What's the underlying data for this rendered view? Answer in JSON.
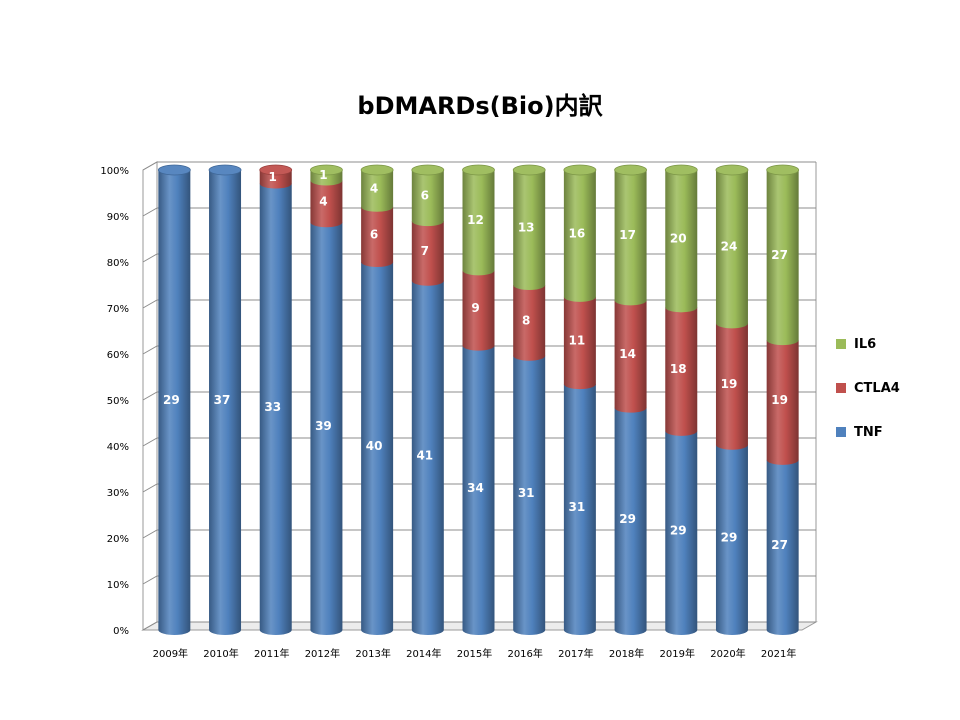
{
  "chart_data": {
    "type": "bar",
    "stacked": true,
    "percent_stacked": true,
    "title": "bDMARDs(Bio)内訳",
    "xlabel": "",
    "ylabel": "",
    "ylim": [
      0,
      100
    ],
    "y_ticks": [
      "0%",
      "10%",
      "20%",
      "30%",
      "40%",
      "50%",
      "60%",
      "70%",
      "80%",
      "90%",
      "100%"
    ],
    "grid": true,
    "legend_position": "right",
    "categories": [
      "2009年",
      "2010年",
      "2011年",
      "2012年",
      "2013年",
      "2014年",
      "2015年",
      "2016年",
      "2017年",
      "2018年",
      "2019年",
      "2020年",
      "2021年"
    ],
    "series": [
      {
        "name": "TNF",
        "color": "#4F81BD",
        "values": [
          29,
          37,
          33,
          39,
          40,
          41,
          34,
          31,
          31,
          29,
          29,
          29,
          27
        ]
      },
      {
        "name": "CTLA4",
        "color": "#C0504D",
        "values": [
          null,
          null,
          1,
          4,
          6,
          7,
          9,
          8,
          11,
          14,
          18,
          19,
          19
        ]
      },
      {
        "name": "IL6",
        "color": "#9BBB59",
        "values": [
          null,
          null,
          null,
          1,
          4,
          6,
          12,
          13,
          16,
          17,
          20,
          24,
          27
        ]
      }
    ]
  }
}
